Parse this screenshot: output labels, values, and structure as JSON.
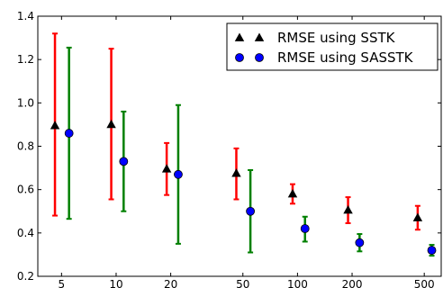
{
  "chart_data": {
    "type": "scatter",
    "title": "",
    "xlabel": "",
    "ylabel": "",
    "xscale": "log",
    "xlim": [
      3.7,
      620
    ],
    "ylim": [
      0.2,
      1.4
    ],
    "x_ticks": [
      5,
      10,
      20,
      50,
      100,
      200,
      500
    ],
    "x_tick_labels": [
      "5",
      "10",
      "20",
      "50",
      "100",
      "200",
      "500"
    ],
    "y_ticks": [
      0.2,
      0.4,
      0.6,
      0.8,
      1.0,
      1.2,
      1.4
    ],
    "y_tick_labels": [
      "0.2",
      "0.4",
      "0.6",
      "0.8",
      "1.0",
      "1.2",
      "1.4"
    ],
    "grid": false,
    "legend_position": "top-right",
    "series": [
      {
        "name": "RMSE using SSTK",
        "marker": "triangle",
        "marker_color": "#000000",
        "error_color": "#ff0000",
        "x": [
          4.6,
          9.4,
          19,
          46,
          94,
          190,
          460
        ],
        "y": [
          0.895,
          0.9,
          0.695,
          0.675,
          0.58,
          0.505,
          0.47
        ],
        "err_low": [
          0.48,
          0.555,
          0.575,
          0.555,
          0.535,
          0.445,
          0.415
        ],
        "err_high": [
          1.32,
          1.25,
          0.815,
          0.79,
          0.625,
          0.565,
          0.525
        ]
      },
      {
        "name": "RMSE using SASSTK",
        "marker": "circle",
        "marker_color": "#0000ff",
        "error_color": "#008000",
        "x": [
          5.5,
          11,
          22,
          55,
          110,
          220,
          550
        ],
        "y": [
          0.86,
          0.73,
          0.67,
          0.5,
          0.42,
          0.355,
          0.32
        ],
        "err_low": [
          0.465,
          0.5,
          0.35,
          0.31,
          0.36,
          0.315,
          0.295
        ],
        "err_high": [
          1.255,
          0.96,
          0.99,
          0.69,
          0.475,
          0.395,
          0.345
        ]
      }
    ]
  }
}
